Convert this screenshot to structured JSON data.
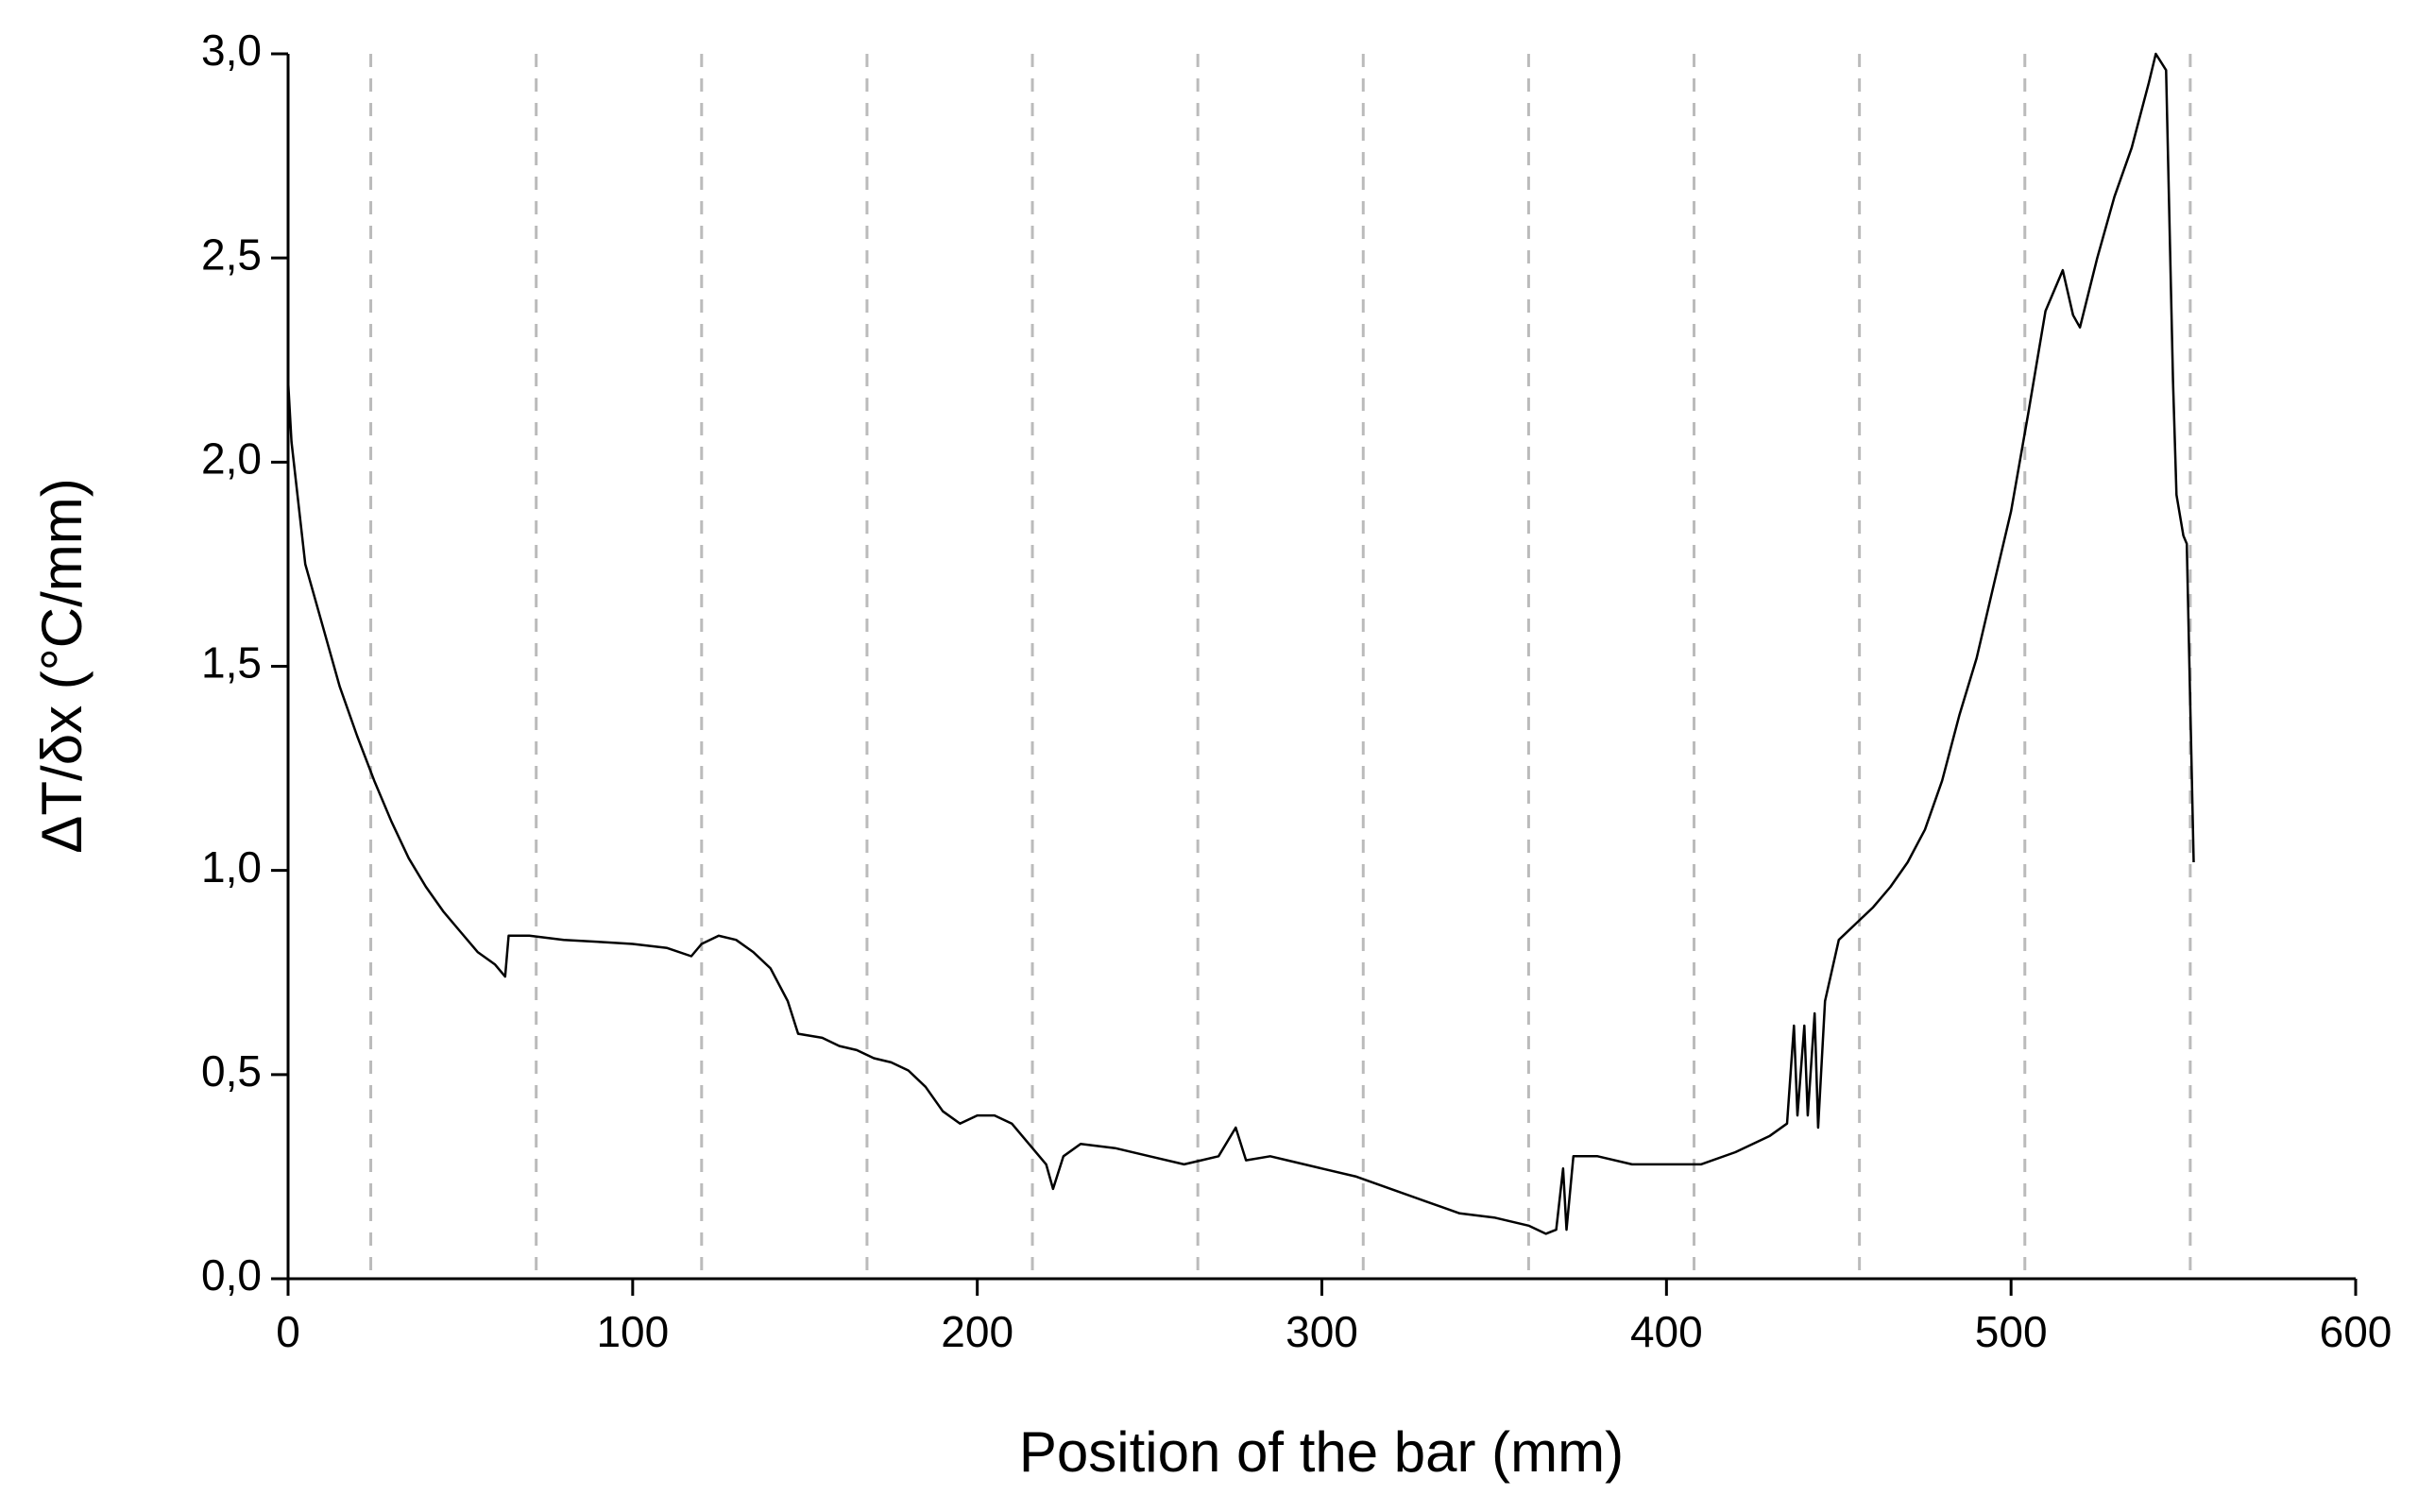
{
  "chart_data": {
    "type": "line",
    "xlabel": "Position of the bar (mm)",
    "ylabel": "ΔT/δx (°C/mm)",
    "color": "#000000",
    "x": [
      0,
      1,
      3,
      5,
      10,
      15,
      20,
      25,
      30,
      35,
      40,
      45,
      50,
      55,
      60,
      63,
      64,
      70,
      80,
      90,
      100,
      110,
      117,
      120,
      125,
      130,
      135,
      140,
      145,
      148,
      155,
      160,
      165,
      170,
      175,
      180,
      185,
      190,
      195,
      200,
      205,
      210,
      215,
      220,
      222,
      225,
      230,
      240,
      250,
      260,
      270,
      275,
      278,
      285,
      290,
      300,
      310,
      320,
      330,
      340,
      350,
      360,
      365,
      368,
      370,
      371,
      373,
      380,
      390,
      400,
      410,
      420,
      430,
      435,
      437,
      438,
      440,
      441,
      443,
      444,
      446,
      450,
      455,
      460,
      465,
      470,
      475,
      480,
      485,
      490,
      495,
      500,
      505,
      510,
      515,
      518,
      520,
      525,
      530,
      535,
      540,
      542,
      545,
      547,
      548,
      550,
      551,
      553
    ],
    "values": [
      2.2,
      2.05,
      1.9,
      1.75,
      1.6,
      1.45,
      1.33,
      1.22,
      1.12,
      1.03,
      0.96,
      0.9,
      0.85,
      0.8,
      0.77,
      0.74,
      0.84,
      0.84,
      0.83,
      0.825,
      0.82,
      0.81,
      0.79,
      0.82,
      0.84,
      0.83,
      0.8,
      0.76,
      0.68,
      0.6,
      0.59,
      0.57,
      0.56,
      0.54,
      0.53,
      0.51,
      0.47,
      0.41,
      0.38,
      0.4,
      0.4,
      0.38,
      0.33,
      0.28,
      0.22,
      0.3,
      0.33,
      0.32,
      0.3,
      0.28,
      0.3,
      0.37,
      0.29,
      0.3,
      0.29,
      0.27,
      0.25,
      0.22,
      0.19,
      0.16,
      0.15,
      0.13,
      0.11,
      0.12,
      0.27,
      0.12,
      0.3,
      0.3,
      0.28,
      0.28,
      0.28,
      0.31,
      0.35,
      0.38,
      0.62,
      0.4,
      0.62,
      0.4,
      0.65,
      0.37,
      0.68,
      0.83,
      0.87,
      0.91,
      0.96,
      1.02,
      1.1,
      1.22,
      1.38,
      1.52,
      1.7,
      1.88,
      2.12,
      2.37,
      2.47,
      2.36,
      2.33,
      2.5,
      2.65,
      2.77,
      2.93,
      3.0,
      2.96,
      2.2,
      1.92,
      1.82,
      1.8,
      1.02
    ],
    "xlim": [
      0,
      600
    ],
    "xticks": [
      0,
      100,
      200,
      300,
      400,
      500,
      600
    ],
    "ylim": [
      0,
      3
    ],
    "yticks": [
      {
        "value": 0,
        "label": "0,0"
      },
      {
        "value": 0.5,
        "label": "0,5"
      },
      {
        "value": 1,
        "label": "1,0"
      },
      {
        "value": 1.5,
        "label": "1,5"
      },
      {
        "value": 2,
        "label": "2,0"
      },
      {
        "value": 2.5,
        "label": "2,5"
      },
      {
        "value": 3,
        "label": "3,0"
      }
    ],
    "vlines": [
      24,
      72,
      120,
      168,
      216,
      264,
      312,
      360,
      408,
      456,
      504,
      552
    ]
  }
}
